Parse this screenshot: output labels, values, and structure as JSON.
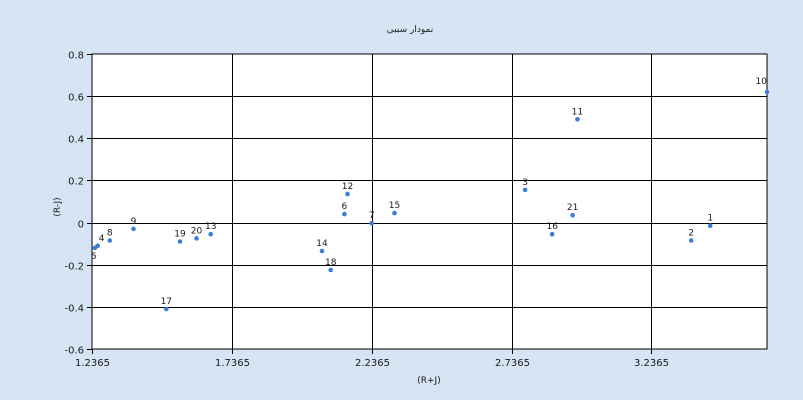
{
  "chart_data": {
    "type": "scatter",
    "title": "نمودار سببی",
    "xlabel": "(R+J)",
    "ylabel": "(R-J)",
    "xlim": [
      1.2365,
      3.65
    ],
    "ylim": [
      -0.6,
      0.8
    ],
    "x_ticks": [
      1.2365,
      1.7365,
      2.2365,
      2.7365,
      3.2365
    ],
    "x_tick_labels": [
      "1.2365",
      "1.7365",
      "2.2365",
      "2.7365",
      "3.2365"
    ],
    "y_ticks": [
      -0.6,
      -0.4,
      -0.2,
      0,
      0.2,
      0.4,
      0.6,
      0.8
    ],
    "y_tick_labels": [
      "-0.6",
      "-0.4",
      "-0.2",
      "0",
      "0.2",
      "0.4",
      "0.6",
      "0.8"
    ],
    "grid": true,
    "legend": "none",
    "marker_color": "#3a7fd5",
    "points": [
      {
        "label": "1",
        "x": 3.447,
        "y": -0.015
      },
      {
        "label": "2",
        "x": 3.379,
        "y": -0.085
      },
      {
        "label": "3",
        "x": 2.785,
        "y": 0.155
      },
      {
        "label": "4",
        "x": 1.257,
        "y": -0.11
      },
      {
        "label": "5",
        "x": 1.247,
        "y": -0.12
      },
      {
        "label": "6",
        "x": 2.139,
        "y": 0.04
      },
      {
        "label": "7",
        "x": 2.2365,
        "y": -0.003
      },
      {
        "label": "8",
        "x": 1.3,
        "y": -0.085
      },
      {
        "label": "9",
        "x": 1.385,
        "y": -0.03
      },
      {
        "label": "10",
        "x": 3.65,
        "y": 0.62
      },
      {
        "label": "11",
        "x": 2.972,
        "y": 0.49
      },
      {
        "label": "12",
        "x": 2.15,
        "y": 0.135
      },
      {
        "label": "13",
        "x": 1.661,
        "y": -0.055
      },
      {
        "label": "14",
        "x": 2.059,
        "y": -0.135
      },
      {
        "label": "15",
        "x": 2.318,
        "y": 0.045
      },
      {
        "label": "16",
        "x": 2.882,
        "y": -0.055
      },
      {
        "label": "17",
        "x": 1.502,
        "y": -0.41
      },
      {
        "label": "18",
        "x": 2.09,
        "y": -0.225
      },
      {
        "label": "19",
        "x": 1.551,
        "y": -0.09
      },
      {
        "label": "20",
        "x": 1.61,
        "y": -0.075
      },
      {
        "label": "21",
        "x": 2.955,
        "y": 0.035
      }
    ]
  }
}
